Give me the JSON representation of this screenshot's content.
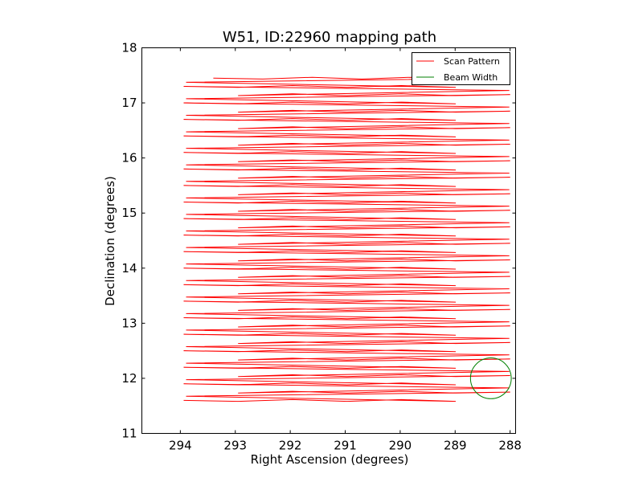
{
  "chart_data": {
    "type": "line",
    "title": "W51, ID:22960 mapping path",
    "xlabel": "Right Ascension (degrees)",
    "ylabel": "Declination (degrees)",
    "xlim": [
      294.7,
      287.9
    ],
    "ylim": [
      11,
      18
    ],
    "x_inverted": true,
    "xticks": [
      294,
      293,
      292,
      291,
      290,
      289,
      288
    ],
    "yticks": [
      11,
      12,
      13,
      14,
      15,
      16,
      17,
      18
    ],
    "grid": false,
    "legend_position": "top-right",
    "legend": [
      "Scan Pattern",
      "Beam Width"
    ],
    "colors": {
      "scan": "#ff0000",
      "beam": "#008000"
    },
    "scan_pattern": {
      "name": "Scan Pattern",
      "start_x": 293.4,
      "start_y": 17.45,
      "row_y": [
        17.45,
        17.3,
        17.15,
        17.0,
        16.85,
        16.7,
        16.55,
        16.4,
        16.25,
        16.1,
        15.95,
        15.8,
        15.65,
        15.5,
        15.35,
        15.2,
        15.05,
        14.9,
        14.75,
        14.6,
        14.45,
        14.3,
        14.15,
        14.0,
        13.85,
        13.7,
        13.55,
        13.4,
        13.25,
        13.1,
        12.95,
        12.8,
        12.65,
        12.5,
        12.35,
        12.2,
        12.05,
        11.9,
        11.75,
        11.6
      ],
      "east_x": 293.94,
      "west_x": 288.0
    },
    "beam_width": {
      "name": "Beam Width",
      "center": [
        288.35,
        12.0
      ],
      "radius_deg": 0.37
    }
  }
}
